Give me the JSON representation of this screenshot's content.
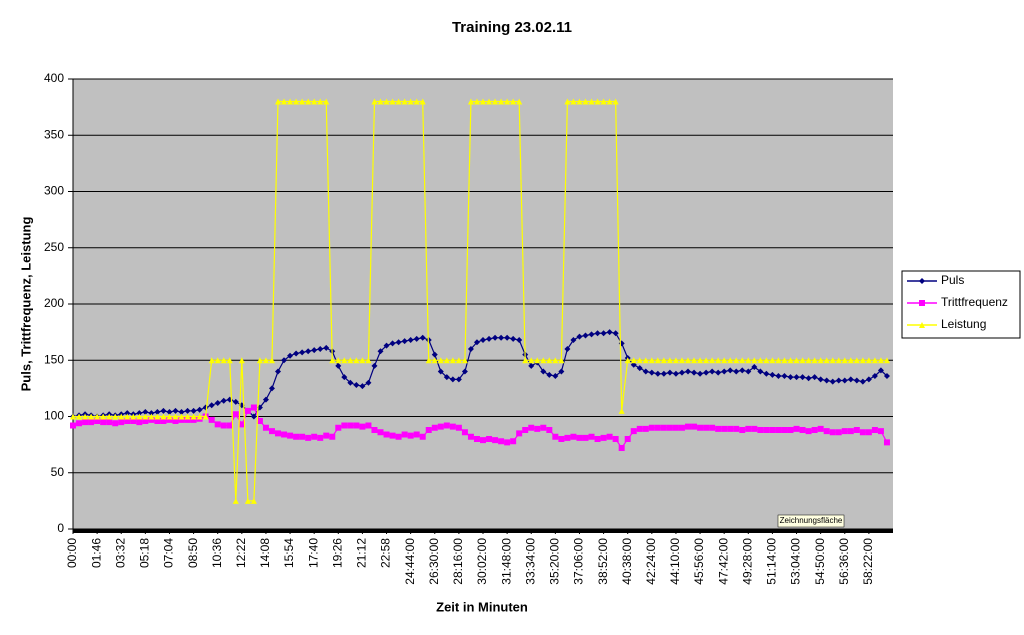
{
  "chart_data": {
    "type": "line",
    "title": "Training 23.02.11",
    "ylabel": "Puls, Trittfrequenz, Leistung",
    "xlabel": "Zeit in Minuten",
    "tooltip": "Zeichnungsfläche",
    "ylim": [
      0,
      400
    ],
    "yticks": [
      0,
      50,
      100,
      150,
      200,
      250,
      300,
      350,
      400
    ],
    "grid": true,
    "legend": "right",
    "categories": [
      "00:00",
      null,
      null,
      null,
      "01:46",
      null,
      null,
      null,
      "03:32",
      null,
      null,
      null,
      "05:18",
      null,
      null,
      null,
      "07:04",
      null,
      null,
      null,
      "08:50",
      null,
      null,
      null,
      "10:36",
      null,
      null,
      null,
      "12:22",
      null,
      null,
      null,
      "14:08",
      null,
      null,
      null,
      "15:54",
      null,
      null,
      null,
      "17:40",
      null,
      null,
      null,
      "19:26",
      null,
      null,
      null,
      "21:12",
      null,
      null,
      null,
      "22:58",
      null,
      null,
      null,
      "24:44:00",
      null,
      null,
      null,
      "26:30:00",
      null,
      null,
      null,
      "28:16:00",
      null,
      null,
      null,
      "30:02:00",
      null,
      null,
      null,
      "31:48:00",
      null,
      null,
      null,
      "33:34:00",
      null,
      null,
      null,
      "35:20:00",
      null,
      null,
      null,
      "37:06:00",
      null,
      null,
      null,
      "38:52:00",
      null,
      null,
      null,
      "40:38:00",
      null,
      null,
      null,
      "42:24:00",
      null,
      null,
      null,
      "44:10:00",
      null,
      null,
      null,
      "45:56:00",
      null,
      null,
      null,
      "47:42:00",
      null,
      null,
      null,
      "49:28:00",
      null,
      null,
      null,
      "51:14:00",
      null,
      null,
      null,
      "53:04:00",
      null,
      null,
      null,
      "54:50:00",
      null,
      null,
      null,
      "56:36:00",
      null,
      null,
      null,
      "58:22:00",
      null,
      null,
      null
    ],
    "series": [
      {
        "name": "Puls",
        "color": "#000080",
        "marker": "diamond",
        "values": [
          100,
          101,
          102,
          101,
          100,
          101,
          102,
          101,
          102,
          103,
          102,
          103,
          104,
          103,
          104,
          105,
          104,
          105,
          104,
          105,
          105,
          106,
          108,
          110,
          112,
          114,
          115,
          113,
          110,
          105,
          100,
          108,
          115,
          125,
          140,
          150,
          154,
          156,
          157,
          158,
          159,
          160,
          161,
          158,
          145,
          135,
          130,
          128,
          127,
          130,
          145,
          158,
          163,
          165,
          166,
          167,
          168,
          169,
          170,
          168,
          155,
          140,
          135,
          133,
          133,
          140,
          160,
          166,
          168,
          169,
          170,
          170,
          170,
          169,
          168,
          155,
          145,
          148,
          140,
          137,
          136,
          140,
          160,
          168,
          171,
          172,
          173,
          174,
          174,
          175,
          174,
          165,
          152,
          146,
          143,
          140,
          139,
          138,
          138,
          139,
          138,
          139,
          140,
          139,
          138,
          139,
          140,
          139,
          140,
          141,
          140,
          141,
          140,
          144,
          140,
          138,
          137,
          136,
          136,
          135,
          135,
          135,
          134,
          135,
          133,
          132,
          131,
          132,
          132,
          133,
          132,
          131,
          133,
          136,
          141,
          136
        ]
      },
      {
        "name": "Trittfrequenz",
        "color": "#ff00ff",
        "marker": "square",
        "values": [
          92,
          94,
          95,
          95,
          96,
          95,
          95,
          94,
          95,
          96,
          96,
          95,
          96,
          97,
          96,
          96,
          97,
          96,
          97,
          97,
          97,
          98,
          100,
          97,
          93,
          92,
          92,
          102,
          93,
          105,
          108,
          96,
          90,
          87,
          85,
          84,
          83,
          82,
          82,
          81,
          82,
          81,
          83,
          82,
          90,
          92,
          92,
          92,
          91,
          92,
          88,
          86,
          84,
          83,
          82,
          84,
          83,
          84,
          82,
          88,
          90,
          91,
          92,
          91,
          90,
          86,
          82,
          80,
          79,
          80,
          79,
          78,
          77,
          78,
          85,
          88,
          90,
          89,
          90,
          88,
          82,
          80,
          81,
          82,
          81,
          81,
          82,
          80,
          81,
          82,
          80,
          72,
          80,
          87,
          89,
          89,
          90,
          90,
          90,
          90,
          90,
          90,
          91,
          91,
          90,
          90,
          90,
          89,
          89,
          89,
          89,
          88,
          89,
          89,
          88,
          88,
          88,
          88,
          88,
          88,
          89,
          88,
          87,
          88,
          89,
          87,
          86,
          86,
          87,
          87,
          88,
          86,
          86,
          88,
          87,
          77
        ]
      },
      {
        "name": "Leistung",
        "color": "#ffff00",
        "marker": "triangle",
        "values": [
          100,
          100,
          100,
          100,
          100,
          100,
          100,
          100,
          100,
          100,
          100,
          100,
          100,
          100,
          100,
          100,
          100,
          100,
          100,
          100,
          100,
          100,
          100,
          150,
          150,
          150,
          150,
          25,
          150,
          25,
          25,
          150,
          150,
          150,
          380,
          380,
          380,
          380,
          380,
          380,
          380,
          380,
          380,
          150,
          150,
          150,
          150,
          150,
          150,
          150,
          380,
          380,
          380,
          380,
          380,
          380,
          380,
          380,
          380,
          150,
          150,
          150,
          150,
          150,
          150,
          150,
          380,
          380,
          380,
          380,
          380,
          380,
          380,
          380,
          380,
          150,
          150,
          150,
          150,
          150,
          150,
          150,
          380,
          380,
          380,
          380,
          380,
          380,
          380,
          380,
          380,
          105,
          150,
          150,
          150,
          150,
          150,
          150,
          150,
          150,
          150,
          150,
          150,
          150,
          150,
          150,
          150,
          150,
          150,
          150,
          150,
          150,
          150,
          150,
          150,
          150,
          150,
          150,
          150,
          150,
          150,
          150,
          150,
          150,
          150,
          150,
          150,
          150,
          150,
          150,
          150,
          150,
          150,
          150,
          150,
          150
        ]
      }
    ]
  }
}
